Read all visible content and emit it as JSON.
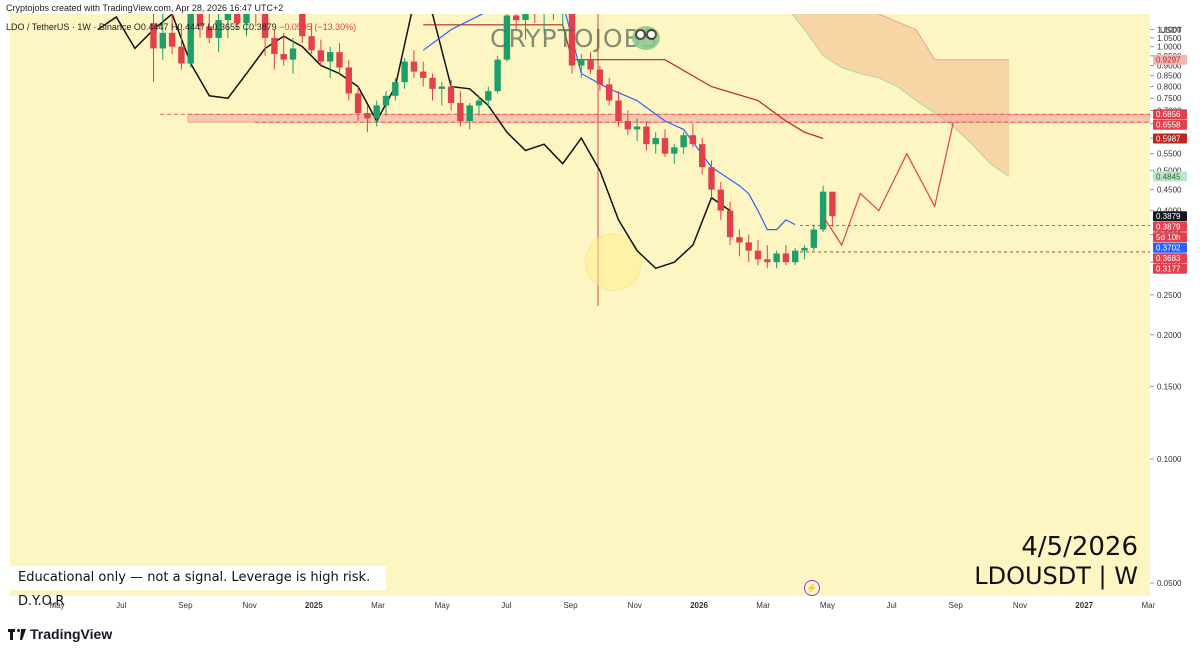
{
  "header": {
    "created_by": "Cryptojobs created with TradingView.com, Apr 28, 2026 16:47 UTC+2",
    "symbol_legend": "LDO / TetherUS · 1W · Binance",
    "ohlc_open": "O0.4447",
    "ohlc_high": "H0.4447",
    "ohlc_low": "L0.3655",
    "ohlc_close": "C0.3879",
    "change": "−0.0595 (−13.30%)"
  },
  "watermark": "CRYPTOJOBS",
  "watermark_icon": "frog-icon",
  "annotation_date": "4/5/2026",
  "annotation_symbol": "LDOUSDT | W",
  "note": "Educational only — not a signal. Leverage is high risk. D.Y.O.R",
  "brand": "TradingView",
  "currency": "USDT",
  "colors": {
    "background": "#fdf6c3",
    "up": "#1e9e6a",
    "down": "#e0414d",
    "kijun": "#b7281e",
    "tenkan": "#2962ff",
    "cloud": "#f6c999",
    "zone": "#f2a3a0"
  },
  "chart_data": {
    "type": "candlestick",
    "timeframe": "1W",
    "y_scale": "log",
    "ylim": [
      0.046,
      1.32
    ],
    "y_ticks": [
      "1.1000",
      "1.0500",
      "1.0000",
      "0.9500",
      "0.9000",
      "0.8500",
      "0.8000",
      "0.7500",
      "0.7000",
      "0.6500",
      "0.6000",
      "0.5500",
      "0.5000",
      "0.4500",
      "0.4000",
      "0.3500",
      "0.3000",
      "0.2500",
      "0.2000",
      "0.1500",
      "0.1000",
      "0.0500"
    ],
    "x_ticks": [
      "May",
      "Jul",
      "Sep",
      "Nov",
      "2025",
      "Mar",
      "May",
      "Jul",
      "Sep",
      "Nov",
      "2026",
      "Mar",
      "May",
      "Jul",
      "Sep",
      "Nov",
      "2027",
      "Mar"
    ],
    "price_labels": [
      {
        "text": "0.9297",
        "value": 0.9297,
        "color": "#f2b6b4",
        "text_color": "#b7281e"
      },
      {
        "text": "0.6856",
        "value": 0.6856,
        "color": "#e0414d",
        "text_color": "#ffffff"
      },
      {
        "text": "0.6558",
        "value": 0.6558,
        "color": "#e0414d",
        "text_color": "#ffffff"
      },
      {
        "text": "0.5987",
        "value": 0.5987,
        "color": "#b7281e",
        "text_color": "#ffffff"
      },
      {
        "text": "0.4845",
        "value": 0.4845,
        "color": "#bfe3c6",
        "text_color": "#1e6b3a"
      },
      {
        "text": "0.3879",
        "value": 0.3879,
        "color": "#131722",
        "text_color": "#ffffff"
      },
      {
        "text": "0.3879",
        "value": 0.3879,
        "color": "#e0414d",
        "text_color": "#ffffff"
      },
      {
        "text": "5d 10h",
        "value": 0.3879,
        "color": "#e0414d",
        "text_color": "#ffffff"
      },
      {
        "text": "0.3702",
        "value": 0.3702,
        "color": "#2962ff",
        "text_color": "#ffffff"
      },
      {
        "text": "0.3683",
        "value": 0.3683,
        "color": "#e0414d",
        "text_color": "#ffffff"
      },
      {
        "text": "0.3177",
        "value": 0.3177,
        "color": "#e0414d",
        "text_color": "#ffffff"
      }
    ],
    "resistance_zone": [
      0.6558,
      0.6856
    ],
    "support_lines": [
      0.3683,
      0.3177
    ],
    "candles": [
      {
        "o": 1.14,
        "h": 1.28,
        "l": 0.82,
        "c": 0.99
      },
      {
        "o": 0.99,
        "h": 1.22,
        "l": 0.93,
        "c": 1.08
      },
      {
        "o": 1.08,
        "h": 1.26,
        "l": 0.96,
        "c": 1.0
      },
      {
        "o": 1.0,
        "h": 1.1,
        "l": 0.88,
        "c": 0.91
      },
      {
        "o": 0.91,
        "h": 1.3,
        "l": 0.89,
        "c": 1.25
      },
      {
        "o": 1.25,
        "h": 1.32,
        "l": 1.05,
        "c": 1.12
      },
      {
        "o": 1.12,
        "h": 1.26,
        "l": 1.02,
        "c": 1.05
      },
      {
        "o": 1.05,
        "h": 1.2,
        "l": 0.97,
        "c": 1.16
      },
      {
        "o": 1.16,
        "h": 1.3,
        "l": 1.05,
        "c": 1.28
      },
      {
        "o": 1.28,
        "h": 1.32,
        "l": 1.1,
        "c": 1.14
      },
      {
        "o": 1.14,
        "h": 1.28,
        "l": 1.06,
        "c": 1.24
      },
      {
        "o": 1.24,
        "h": 1.32,
        "l": 1.12,
        "c": 1.2
      },
      {
        "o": 1.2,
        "h": 1.3,
        "l": 0.95,
        "c": 1.05
      },
      {
        "o": 1.05,
        "h": 1.1,
        "l": 0.88,
        "c": 0.96
      },
      {
        "o": 0.96,
        "h": 1.08,
        "l": 0.9,
        "c": 0.93
      },
      {
        "o": 0.93,
        "h": 1.05,
        "l": 0.86,
        "c": 0.99
      },
      {
        "o": 1.3,
        "h": 1.32,
        "l": 1.02,
        "c": 1.06
      },
      {
        "o": 1.06,
        "h": 1.14,
        "l": 0.96,
        "c": 0.98
      },
      {
        "o": 0.98,
        "h": 1.04,
        "l": 0.9,
        "c": 0.92
      },
      {
        "o": 0.92,
        "h": 1.0,
        "l": 0.84,
        "c": 0.97
      },
      {
        "o": 0.97,
        "h": 1.02,
        "l": 0.86,
        "c": 0.89
      },
      {
        "o": 0.89,
        "h": 0.93,
        "l": 0.74,
        "c": 0.77
      },
      {
        "o": 0.77,
        "h": 0.8,
        "l": 0.66,
        "c": 0.69
      },
      {
        "o": 0.69,
        "h": 0.72,
        "l": 0.62,
        "c": 0.67
      },
      {
        "o": 0.67,
        "h": 0.74,
        "l": 0.64,
        "c": 0.72
      },
      {
        "o": 0.72,
        "h": 0.78,
        "l": 0.68,
        "c": 0.76
      },
      {
        "o": 0.76,
        "h": 0.84,
        "l": 0.74,
        "c": 0.82
      },
      {
        "o": 0.82,
        "h": 0.94,
        "l": 0.79,
        "c": 0.92
      },
      {
        "o": 0.92,
        "h": 0.98,
        "l": 0.84,
        "c": 0.87
      },
      {
        "o": 0.87,
        "h": 0.92,
        "l": 0.8,
        "c": 0.84
      },
      {
        "o": 0.84,
        "h": 0.86,
        "l": 0.74,
        "c": 0.79
      },
      {
        "o": 0.79,
        "h": 0.82,
        "l": 0.72,
        "c": 0.8
      },
      {
        "o": 0.8,
        "h": 0.83,
        "l": 0.7,
        "c": 0.73
      },
      {
        "o": 0.73,
        "h": 0.78,
        "l": 0.64,
        "c": 0.66
      },
      {
        "o": 0.66,
        "h": 0.73,
        "l": 0.63,
        "c": 0.72
      },
      {
        "o": 0.72,
        "h": 0.76,
        "l": 0.68,
        "c": 0.74
      },
      {
        "o": 0.74,
        "h": 0.8,
        "l": 0.71,
        "c": 0.78
      },
      {
        "o": 0.78,
        "h": 0.95,
        "l": 0.77,
        "c": 0.93
      },
      {
        "o": 0.93,
        "h": 1.22,
        "l": 0.92,
        "c": 1.19
      },
      {
        "o": 1.19,
        "h": 1.32,
        "l": 1.1,
        "c": 1.16
      },
      {
        "o": 1.16,
        "h": 1.3,
        "l": 1.04,
        "c": 1.26
      },
      {
        "o": 1.26,
        "h": 1.32,
        "l": 1.14,
        "c": 1.2
      },
      {
        "o": 1.2,
        "h": 1.32,
        "l": 1.08,
        "c": 1.28
      },
      {
        "o": 1.28,
        "h": 1.32,
        "l": 1.16,
        "c": 1.22
      },
      {
        "o": 1.22,
        "h": 1.32,
        "l": 1.12,
        "c": 1.3
      },
      {
        "o": 1.3,
        "h": 1.32,
        "l": 0.86,
        "c": 0.9
      },
      {
        "o": 0.9,
        "h": 0.96,
        "l": 0.84,
        "c": 0.93
      },
      {
        "o": 0.93,
        "h": 0.97,
        "l": 0.86,
        "c": 0.88
      },
      {
        "o": 0.88,
        "h": 0.9,
        "l": 0.78,
        "c": 0.81
      },
      {
        "o": 0.81,
        "h": 0.84,
        "l": 0.72,
        "c": 0.74
      },
      {
        "o": 0.74,
        "h": 0.78,
        "l": 0.64,
        "c": 0.66
      },
      {
        "o": 0.66,
        "h": 0.7,
        "l": 0.61,
        "c": 0.63
      },
      {
        "o": 0.63,
        "h": 0.67,
        "l": 0.59,
        "c": 0.64
      },
      {
        "o": 0.64,
        "h": 0.66,
        "l": 0.56,
        "c": 0.58
      },
      {
        "o": 0.58,
        "h": 0.62,
        "l": 0.55,
        "c": 0.6
      },
      {
        "o": 0.6,
        "h": 0.63,
        "l": 0.54,
        "c": 0.55
      },
      {
        "o": 0.55,
        "h": 0.58,
        "l": 0.52,
        "c": 0.57
      },
      {
        "o": 0.57,
        "h": 0.62,
        "l": 0.55,
        "c": 0.61
      },
      {
        "o": 0.61,
        "h": 0.65,
        "l": 0.57,
        "c": 0.58
      },
      {
        "o": 0.58,
        "h": 0.6,
        "l": 0.49,
        "c": 0.51
      },
      {
        "o": 0.51,
        "h": 0.53,
        "l": 0.43,
        "c": 0.45
      },
      {
        "o": 0.45,
        "h": 0.47,
        "l": 0.38,
        "c": 0.4
      },
      {
        "o": 0.4,
        "h": 0.42,
        "l": 0.33,
        "c": 0.345
      },
      {
        "o": 0.345,
        "h": 0.36,
        "l": 0.31,
        "c": 0.335
      },
      {
        "o": 0.335,
        "h": 0.35,
        "l": 0.3,
        "c": 0.32
      },
      {
        "o": 0.32,
        "h": 0.34,
        "l": 0.295,
        "c": 0.305
      },
      {
        "o": 0.305,
        "h": 0.33,
        "l": 0.29,
        "c": 0.3
      },
      {
        "o": 0.3,
        "h": 0.32,
        "l": 0.29,
        "c": 0.315
      },
      {
        "o": 0.315,
        "h": 0.33,
        "l": 0.295,
        "c": 0.3
      },
      {
        "o": 0.3,
        "h": 0.325,
        "l": 0.295,
        "c": 0.32
      },
      {
        "o": 0.32,
        "h": 0.33,
        "l": 0.305,
        "c": 0.325
      },
      {
        "o": 0.325,
        "h": 0.37,
        "l": 0.32,
        "c": 0.36
      },
      {
        "o": 0.36,
        "h": 0.46,
        "l": 0.355,
        "c": 0.445
      },
      {
        "o": 0.4447,
        "h": 0.4447,
        "l": 0.3655,
        "c": 0.3879
      }
    ],
    "kijun_line": [
      [
        29,
        1.13
      ],
      [
        44,
        1.13
      ],
      [
        45,
        0.9297
      ],
      [
        55,
        0.9297
      ],
      [
        60,
        0.8
      ],
      [
        65,
        0.74
      ],
      [
        68,
        0.66
      ],
      [
        70,
        0.62
      ],
      [
        72,
        0.5987
      ]
    ],
    "tenkan_line": [
      [
        29,
        0.98
      ],
      [
        32,
        1.1
      ],
      [
        36,
        1.22
      ],
      [
        42,
        1.25
      ],
      [
        44,
        1.28
      ],
      [
        46,
        0.86
      ],
      [
        49,
        0.79
      ],
      [
        52,
        0.74
      ],
      [
        55,
        0.66
      ],
      [
        57,
        0.63
      ],
      [
        60,
        0.51
      ],
      [
        63,
        0.46
      ],
      [
        64,
        0.44
      ],
      [
        65,
        0.4
      ],
      [
        66,
        0.36
      ],
      [
        67,
        0.36
      ],
      [
        68,
        0.38
      ],
      [
        69,
        0.3702
      ]
    ],
    "overlay_line": [
      [
        -6,
        1.1
      ],
      [
        -4,
        1.18
      ],
      [
        -2,
        0.99
      ],
      [
        0,
        1.1
      ],
      [
        2,
        1.2
      ],
      [
        4,
        0.91
      ],
      [
        6,
        0.76
      ],
      [
        8,
        0.75
      ],
      [
        10,
        0.86
      ],
      [
        12,
        0.99
      ],
      [
        14,
        1.06
      ],
      [
        16,
        1.0
      ],
      [
        18,
        0.9
      ],
      [
        20,
        0.86
      ],
      [
        22,
        0.8
      ],
      [
        24,
        0.66
      ],
      [
        26,
        0.8
      ],
      [
        28,
        1.28
      ],
      [
        30,
        1.2
      ],
      [
        32,
        0.8
      ],
      [
        34,
        0.79
      ],
      [
        36,
        0.72
      ],
      [
        38,
        0.62
      ],
      [
        40,
        0.56
      ],
      [
        42,
        0.58
      ],
      [
        44,
        0.52
      ],
      [
        46,
        0.6
      ],
      [
        48,
        0.5
      ],
      [
        50,
        0.38
      ],
      [
        52,
        0.32
      ],
      [
        54,
        0.29
      ],
      [
        56,
        0.3
      ],
      [
        58,
        0.33
      ],
      [
        60,
        0.43
      ],
      [
        62,
        0.4
      ]
    ],
    "projection": [
      [
        72,
        0.3879
      ],
      [
        74,
        0.33
      ],
      [
        76,
        0.44
      ],
      [
        78,
        0.4
      ],
      [
        81,
        0.55
      ],
      [
        84,
        0.41
      ],
      [
        86,
        0.655
      ]
    ],
    "cloud_upper": [
      [
        66,
        1.32
      ],
      [
        72,
        1.32
      ],
      [
        78,
        1.2
      ],
      [
        82,
        1.1
      ],
      [
        84,
        0.9297
      ],
      [
        87,
        0.9297
      ],
      [
        92,
        0.9297
      ]
    ],
    "cloud_lower": [
      [
        66,
        1.32
      ],
      [
        68,
        1.25
      ],
      [
        70,
        1.1
      ],
      [
        72,
        0.95
      ],
      [
        74,
        0.89
      ],
      [
        76,
        0.86
      ],
      [
        78,
        0.84
      ],
      [
        80,
        0.8
      ],
      [
        82,
        0.74
      ],
      [
        84,
        0.69
      ],
      [
        86,
        0.64
      ],
      [
        88,
        0.58
      ],
      [
        90,
        0.52
      ],
      [
        92,
        0.4845
      ]
    ],
    "highlight_circle": {
      "x": 50.5,
      "y": 0.3
    }
  }
}
